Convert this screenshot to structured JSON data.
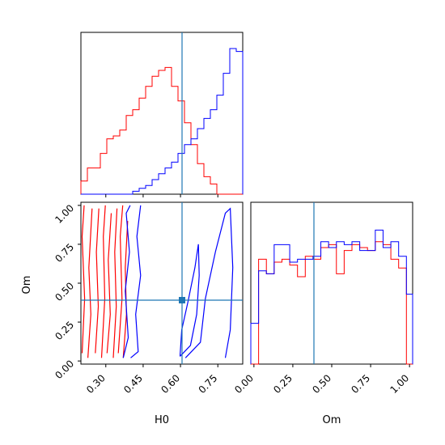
{
  "chart_data": {
    "type": "corner",
    "title": "",
    "parameters": [
      "H0",
      "Om"
    ],
    "xlabel_H0": "H0",
    "xlabel_Om": "Om",
    "ylabel_Om": "Om",
    "truth": {
      "H0": 0.6,
      "Om": 0.39
    },
    "ranges": {
      "H0": [
        0.2,
        0.85
      ],
      "Om": [
        -0.02,
        1.02
      ]
    },
    "ticks": {
      "H0": [
        "0.30",
        "0.45",
        "0.60",
        "0.75"
      ],
      "Om": [
        "0.00",
        "0.25",
        "0.50",
        "0.75",
        "1.00"
      ]
    },
    "colors": {
      "series_a": "#ff0000",
      "series_b": "#0000ff",
      "truth": "#1f77b4"
    },
    "h0_hist": {
      "bins": [
        0.2,
        0.226,
        0.252,
        0.278,
        0.304,
        0.33,
        0.356,
        0.382,
        0.408,
        0.434,
        0.46,
        0.486,
        0.512,
        0.538,
        0.564,
        0.59,
        0.616,
        0.642,
        0.668,
        0.694,
        0.72,
        0.746,
        0.772,
        0.798,
        0.824,
        0.85
      ],
      "series": [
        {
          "values": [
            0.09,
            0.18,
            0.18,
            0.28,
            0.38,
            0.4,
            0.44,
            0.54,
            0.58,
            0.66,
            0.74,
            0.81,
            0.85,
            0.87,
            0.74,
            0.64,
            0.49,
            0.34,
            0.21,
            0.12,
            0.07,
            0.0,
            0.0,
            0.0,
            0.0
          ]
        },
        {
          "values": [
            0.0,
            0.0,
            0.0,
            0.0,
            0.0,
            0.0,
            0.0,
            0.0,
            0.02,
            0.04,
            0.06,
            0.1,
            0.14,
            0.18,
            0.22,
            0.28,
            0.34,
            0.38,
            0.45,
            0.52,
            0.58,
            0.68,
            0.83,
            1.0,
            0.98
          ]
        }
      ]
    },
    "om_hist": {
      "bins": [
        -0.02,
        0.03,
        0.08,
        0.13,
        0.18,
        0.23,
        0.28,
        0.33,
        0.38,
        0.43,
        0.48,
        0.53,
        0.58,
        0.63,
        0.68,
        0.73,
        0.78,
        0.83,
        0.88,
        0.93,
        0.98,
        1.02
      ],
      "series": [
        {
          "values": [
            0.0,
            0.72,
            0.62,
            0.7,
            0.72,
            0.68,
            0.6,
            0.74,
            0.72,
            0.8,
            0.82,
            0.62,
            0.78,
            0.82,
            0.8,
            0.78,
            0.84,
            0.82,
            0.72,
            0.66,
            0.0
          ]
        },
        {
          "values": [
            0.28,
            0.64,
            0.62,
            0.82,
            0.82,
            0.7,
            0.72,
            0.72,
            0.74,
            0.84,
            0.8,
            0.84,
            0.82,
            0.84,
            0.78,
            0.78,
            0.92,
            0.8,
            0.84,
            0.74,
            0.48
          ]
        }
      ]
    },
    "contours": {
      "series_a": [
        [
          [
            0.205,
            0.05
          ],
          [
            0.215,
            0.4
          ],
          [
            0.205,
            0.8
          ],
          [
            0.213,
            1.0
          ]
        ],
        [
          [
            0.228,
            0.02
          ],
          [
            0.24,
            0.3
          ],
          [
            0.232,
            0.6
          ],
          [
            0.245,
            0.98
          ]
        ],
        [
          [
            0.258,
            0.05
          ],
          [
            0.27,
            0.35
          ],
          [
            0.262,
            0.7
          ],
          [
            0.272,
            0.98
          ]
        ],
        [
          [
            0.283,
            0.02
          ],
          [
            0.296,
            0.4
          ],
          [
            0.29,
            0.8
          ],
          [
            0.298,
            1.0
          ]
        ],
        [
          [
            0.305,
            0.05
          ],
          [
            0.318,
            0.3
          ],
          [
            0.31,
            0.65
          ],
          [
            0.322,
            0.95
          ]
        ],
        [
          [
            0.33,
            0.02
          ],
          [
            0.342,
            0.35
          ],
          [
            0.336,
            0.7
          ],
          [
            0.345,
            0.98
          ]
        ],
        [
          [
            0.35,
            0.05
          ],
          [
            0.365,
            0.4
          ],
          [
            0.358,
            0.8
          ],
          [
            0.368,
            1.0
          ]
        ],
        [
          [
            0.37,
            0.02
          ],
          [
            0.383,
            0.3
          ],
          [
            0.378,
            0.6
          ],
          [
            0.388,
            0.9
          ]
        ]
      ],
      "series_b": [
        [
          [
            0.37,
            0.02
          ],
          [
            0.39,
            0.15
          ],
          [
            0.378,
            0.45
          ],
          [
            0.395,
            0.7
          ],
          [
            0.382,
            0.95
          ],
          [
            0.398,
            1.0
          ]
        ],
        [
          [
            0.4,
            0.02
          ],
          [
            0.43,
            0.06
          ],
          [
            0.42,
            0.3
          ],
          [
            0.44,
            0.55
          ],
          [
            0.425,
            0.8
          ],
          [
            0.44,
            1.0
          ]
        ],
        [
          [
            0.598,
            0.03
          ],
          [
            0.605,
            0.2
          ],
          [
            0.63,
            0.38
          ],
          [
            0.658,
            0.6
          ],
          [
            0.672,
            0.75
          ],
          [
            0.675,
            0.55
          ],
          [
            0.665,
            0.3
          ],
          [
            0.64,
            0.1
          ],
          [
            0.598,
            0.03
          ]
        ],
        [
          [
            0.62,
            0.02
          ],
          [
            0.68,
            0.12
          ],
          [
            0.7,
            0.4
          ],
          [
            0.74,
            0.7
          ],
          [
            0.78,
            0.95
          ],
          [
            0.8,
            0.98
          ],
          [
            0.81,
            0.6
          ],
          [
            0.8,
            0.2
          ],
          [
            0.78,
            0.02
          ]
        ]
      ]
    }
  }
}
